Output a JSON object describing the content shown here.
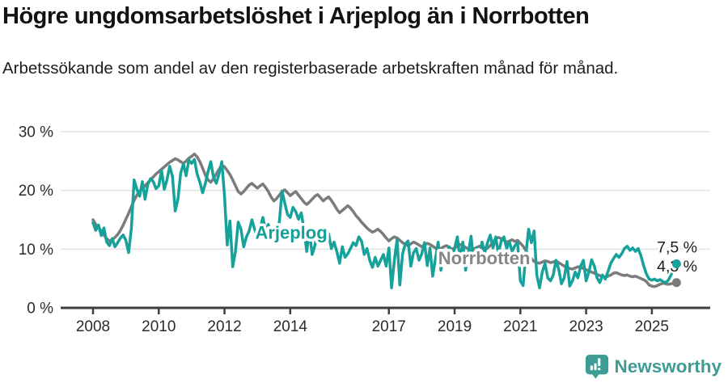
{
  "header": {
    "title": "Högre ungdomsarbetslöshet i Arjeplog än i Norrbotten",
    "subtitle": "Arbetssökande som andel av den registerbaserade arbetskraften månad för månad."
  },
  "chart_data": {
    "type": "line",
    "title": "Högre ungdomsarbetslöshet i Arjeplog än i Norrbotten",
    "xlabel": "",
    "ylabel": "",
    "x_start": 2008,
    "x_step_months": 1,
    "x_tick_years": [
      2008,
      2010,
      2012,
      2014,
      2017,
      2019,
      2021,
      2023,
      2025
    ],
    "x_tick_labels": [
      "2008",
      "2010",
      "2012",
      "2014",
      "2017",
      "2019",
      "2021",
      "2023",
      "2025"
    ],
    "y_ticks": [
      0,
      10,
      20,
      30
    ],
    "y_tick_labels": [
      "0 %",
      "10 %",
      "20 %",
      "30 %"
    ],
    "ylim": [
      0,
      31
    ],
    "grid": "horizontal",
    "legend_position": "inline-labels",
    "series": [
      {
        "name": "Norrbotten",
        "color": "#7b7b7b",
        "label_color": "#868686",
        "end_label": "4,3 %",
        "end_value": 4.3,
        "values": [
          15.0,
          14.2,
          13.7,
          13.0,
          12.4,
          11.8,
          11.4,
          11.6,
          12.0,
          12.5,
          13.2,
          14.1,
          15.1,
          16.1,
          17.2,
          18.3,
          19.2,
          19.9,
          20.3,
          20.8,
          21.3,
          21.8,
          22.3,
          22.8,
          23.2,
          23.6,
          24.0,
          24.4,
          24.8,
          25.1,
          25.4,
          25.2,
          24.9,
          24.6,
          25.0,
          25.5,
          25.8,
          26.2,
          25.7,
          24.9,
          23.8,
          22.6,
          21.8,
          21.4,
          22.0,
          22.8,
          23.6,
          24.3,
          24.0,
          23.4,
          22.7,
          21.8,
          20.8,
          19.8,
          19.4,
          19.8,
          20.4,
          20.9,
          21.2,
          20.8,
          20.4,
          20.8,
          21.1,
          20.5,
          19.8,
          18.9,
          18.2,
          18.6,
          19.2,
          19.8,
          20.1,
          19.6,
          19.1,
          19.5,
          19.8,
          19.2,
          18.6,
          18.0,
          17.6,
          18.0,
          18.5,
          19.0,
          19.3,
          18.8,
          18.2,
          18.6,
          18.9,
          18.3,
          17.6,
          16.8,
          16.2,
          16.6,
          17.0,
          17.4,
          17.0,
          16.4,
          15.7,
          15.2,
          14.6,
          14.1,
          13.6,
          13.2,
          12.9,
          13.1,
          13.4,
          13.0,
          12.5,
          11.9,
          11.4,
          11.8,
          12.1,
          11.9,
          11.5,
          11.1,
          10.8,
          10.6,
          10.9,
          11.2,
          11.0,
          10.7,
          10.4,
          10.7,
          11.0,
          10.8,
          10.5,
          10.2,
          9.9,
          10.1,
          10.4,
          10.6,
          10.3,
          10.0,
          10.2,
          10.5,
          10.8,
          10.6,
          10.3,
          10.0,
          9.8,
          10.0,
          10.3,
          10.5,
          10.2,
          9.9,
          10.2,
          10.6,
          11.2,
          11.8,
          12.0,
          11.8,
          11.5,
          11.2,
          11.4,
          11.6,
          11.3,
          11.5,
          11.0,
          10.5,
          9.8,
          9.0,
          8.4,
          7.9,
          7.7,
          7.6,
          7.8,
          8.0,
          7.9,
          7.7,
          7.8,
          8.0,
          7.7,
          7.4,
          7.1,
          6.9,
          6.7,
          6.6,
          6.8,
          7.0,
          6.9,
          6.7,
          6.5,
          6.3,
          6.1,
          5.9,
          5.7,
          5.5,
          5.3,
          5.2,
          5.4,
          5.6,
          5.9,
          6.0,
          5.8,
          5.6,
          5.5,
          5.6,
          5.4,
          5.3,
          5.4,
          5.2,
          5.0,
          4.8,
          4.5,
          3.9,
          3.7,
          3.6,
          3.8,
          4.0,
          4.2,
          4.1,
          4.0,
          4.1,
          4.2,
          4.3
        ]
      },
      {
        "name": "Arjeplog",
        "color": "#16a29a",
        "label_color": "#13a099",
        "end_label": "7,5 %",
        "end_value": 7.5,
        "values": [
          14.5,
          13.2,
          14.1,
          12.3,
          13.6,
          11.2,
          10.6,
          11.8,
          10.4,
          11.1,
          11.9,
          12.4,
          11.5,
          9.4,
          13.5,
          21.8,
          20.2,
          19.0,
          21.5,
          18.5,
          21.0,
          22.0,
          21.5,
          20.3,
          20.8,
          23.4,
          20.2,
          21.8,
          24.1,
          22.4,
          16.5,
          18.5,
          23.0,
          24.5,
          22.5,
          25.2,
          24.6,
          25.3,
          22.8,
          21.4,
          19.6,
          21.2,
          23.2,
          24.9,
          22.2,
          21.2,
          22.8,
          24.9,
          19.0,
          10.7,
          14.8,
          7.0,
          9.6,
          14.6,
          13.4,
          10.4,
          12.1,
          13.1,
          15.0,
          13.4,
          12.1,
          13.6,
          15.4,
          13.1,
          14.2,
          12.4,
          11.1,
          13.2,
          14.6,
          19.9,
          17.8,
          15.9,
          15.4,
          17.1,
          16.4,
          15.1,
          16.2,
          13.4,
          9.6,
          13.1,
          9.1,
          10.6,
          13.4,
          12.1,
          13.1,
          11.6,
          12.6,
          10.1,
          11.2,
          9.6,
          7.6,
          10.4,
          8.6,
          9.2,
          10.1,
          11.1,
          10.6,
          12.1,
          11.4,
          9.1,
          10.1,
          8.1,
          6.9,
          8.6,
          7.1,
          8.1,
          9.1,
          7.1,
          10.2,
          3.4,
          8.1,
          11.6,
          3.9,
          9.2,
          10.9,
          11.4,
          7.1,
          9.4,
          10.1,
          8.1,
          9.2,
          11.1,
          7.2,
          10.2,
          5.4,
          8.4,
          11.2,
          6.4,
          9.4,
          7.4,
          10.4,
          8.4,
          10.1,
          12.1,
          8.2,
          11.2,
          6.4,
          9.4,
          12.2,
          7.4,
          10.2,
          8.4,
          11.2,
          9.4,
          11.1,
          12.4,
          10.2,
          12.1,
          9.2,
          11.4,
          12.1,
          10.1,
          11.2,
          9.6,
          10.6,
          11.1,
          4.6,
          3.8,
          9.1,
          13.4,
          11.1,
          13.1,
          5.6,
          3.4,
          6.1,
          7.6,
          5.1,
          4.6,
          5.6,
          8.1,
          6.6,
          4.1,
          5.1,
          7.9,
          3.7,
          4.6,
          6.1,
          5.1,
          7.1,
          8.1,
          4.6,
          6.1,
          8.2,
          7.1,
          5.1,
          4.3,
          5.6,
          4.9,
          6.2,
          7.6,
          8.4,
          9.1,
          8.6,
          9.2,
          10.1,
          10.5,
          9.8,
          10.2,
          9.6,
          10.1,
          8.9,
          7.2,
          5.8,
          4.9,
          4.7,
          4.9,
          4.6,
          4.8,
          4.5,
          4.3,
          4.7,
          5.6,
          6.8,
          7.5
        ]
      }
    ],
    "annotations": [
      {
        "text": "Arjeplog",
        "x_year": 2014.03,
        "y_pct": 12.9,
        "series": "Arjeplog"
      },
      {
        "text": "Norrbotten",
        "x_year": 2019.9,
        "y_pct": 8.5,
        "series": "Norrbotten"
      }
    ]
  },
  "footer": {
    "brand": "Newsworthy"
  },
  "colors": {
    "accent_teal": "#16a29a",
    "line_gray": "#7b7b7b",
    "gridline": "#e3e3e3",
    "axis": "#3f3f3f",
    "text_dark": "#1d1d1d",
    "logo_teal": "#3f9c95"
  }
}
